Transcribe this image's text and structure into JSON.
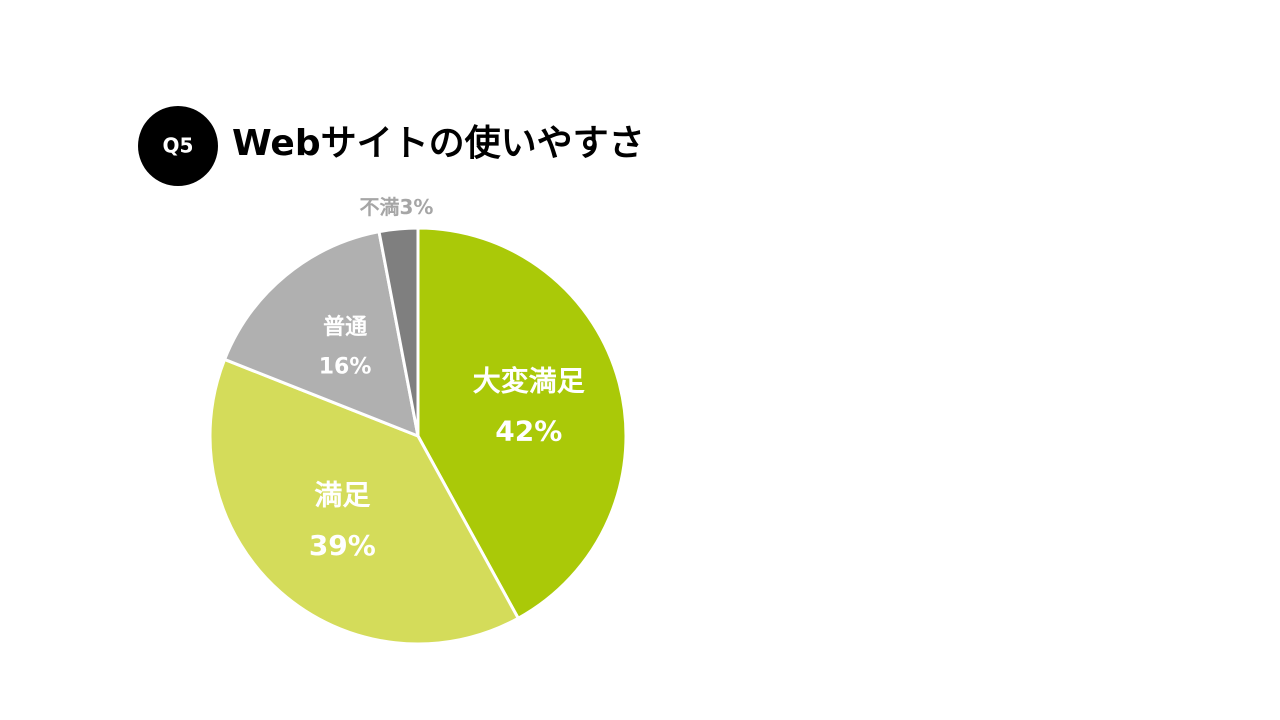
{
  "badge": "Q5",
  "chart_data": {
    "type": "pie",
    "title": "Webサイトの使いやすさ",
    "categories": [
      "大変満足",
      "満足",
      "普通",
      "不満"
    ],
    "values": [
      42,
      39,
      16,
      3
    ],
    "value_labels": [
      "42%",
      "39%",
      "16%",
      "3%"
    ],
    "colors": [
      "#aac908",
      "#d4dc5a",
      "#b0b0b0",
      "#7f7f7f"
    ]
  }
}
